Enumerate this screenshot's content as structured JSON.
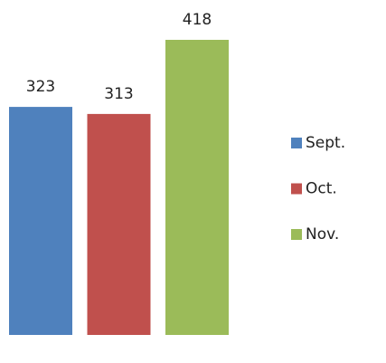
{
  "chart_data": {
    "type": "bar",
    "categories": [
      null
    ],
    "series": [
      {
        "name": "Sept.",
        "color": "#4f81bd",
        "values": [
          323
        ]
      },
      {
        "name": "Oct.",
        "color": "#c0504d",
        "values": [
          313
        ]
      },
      {
        "name": "Nov.",
        "color": "#9bbb59",
        "values": [
          418
        ]
      }
    ],
    "legend": "right"
  }
}
